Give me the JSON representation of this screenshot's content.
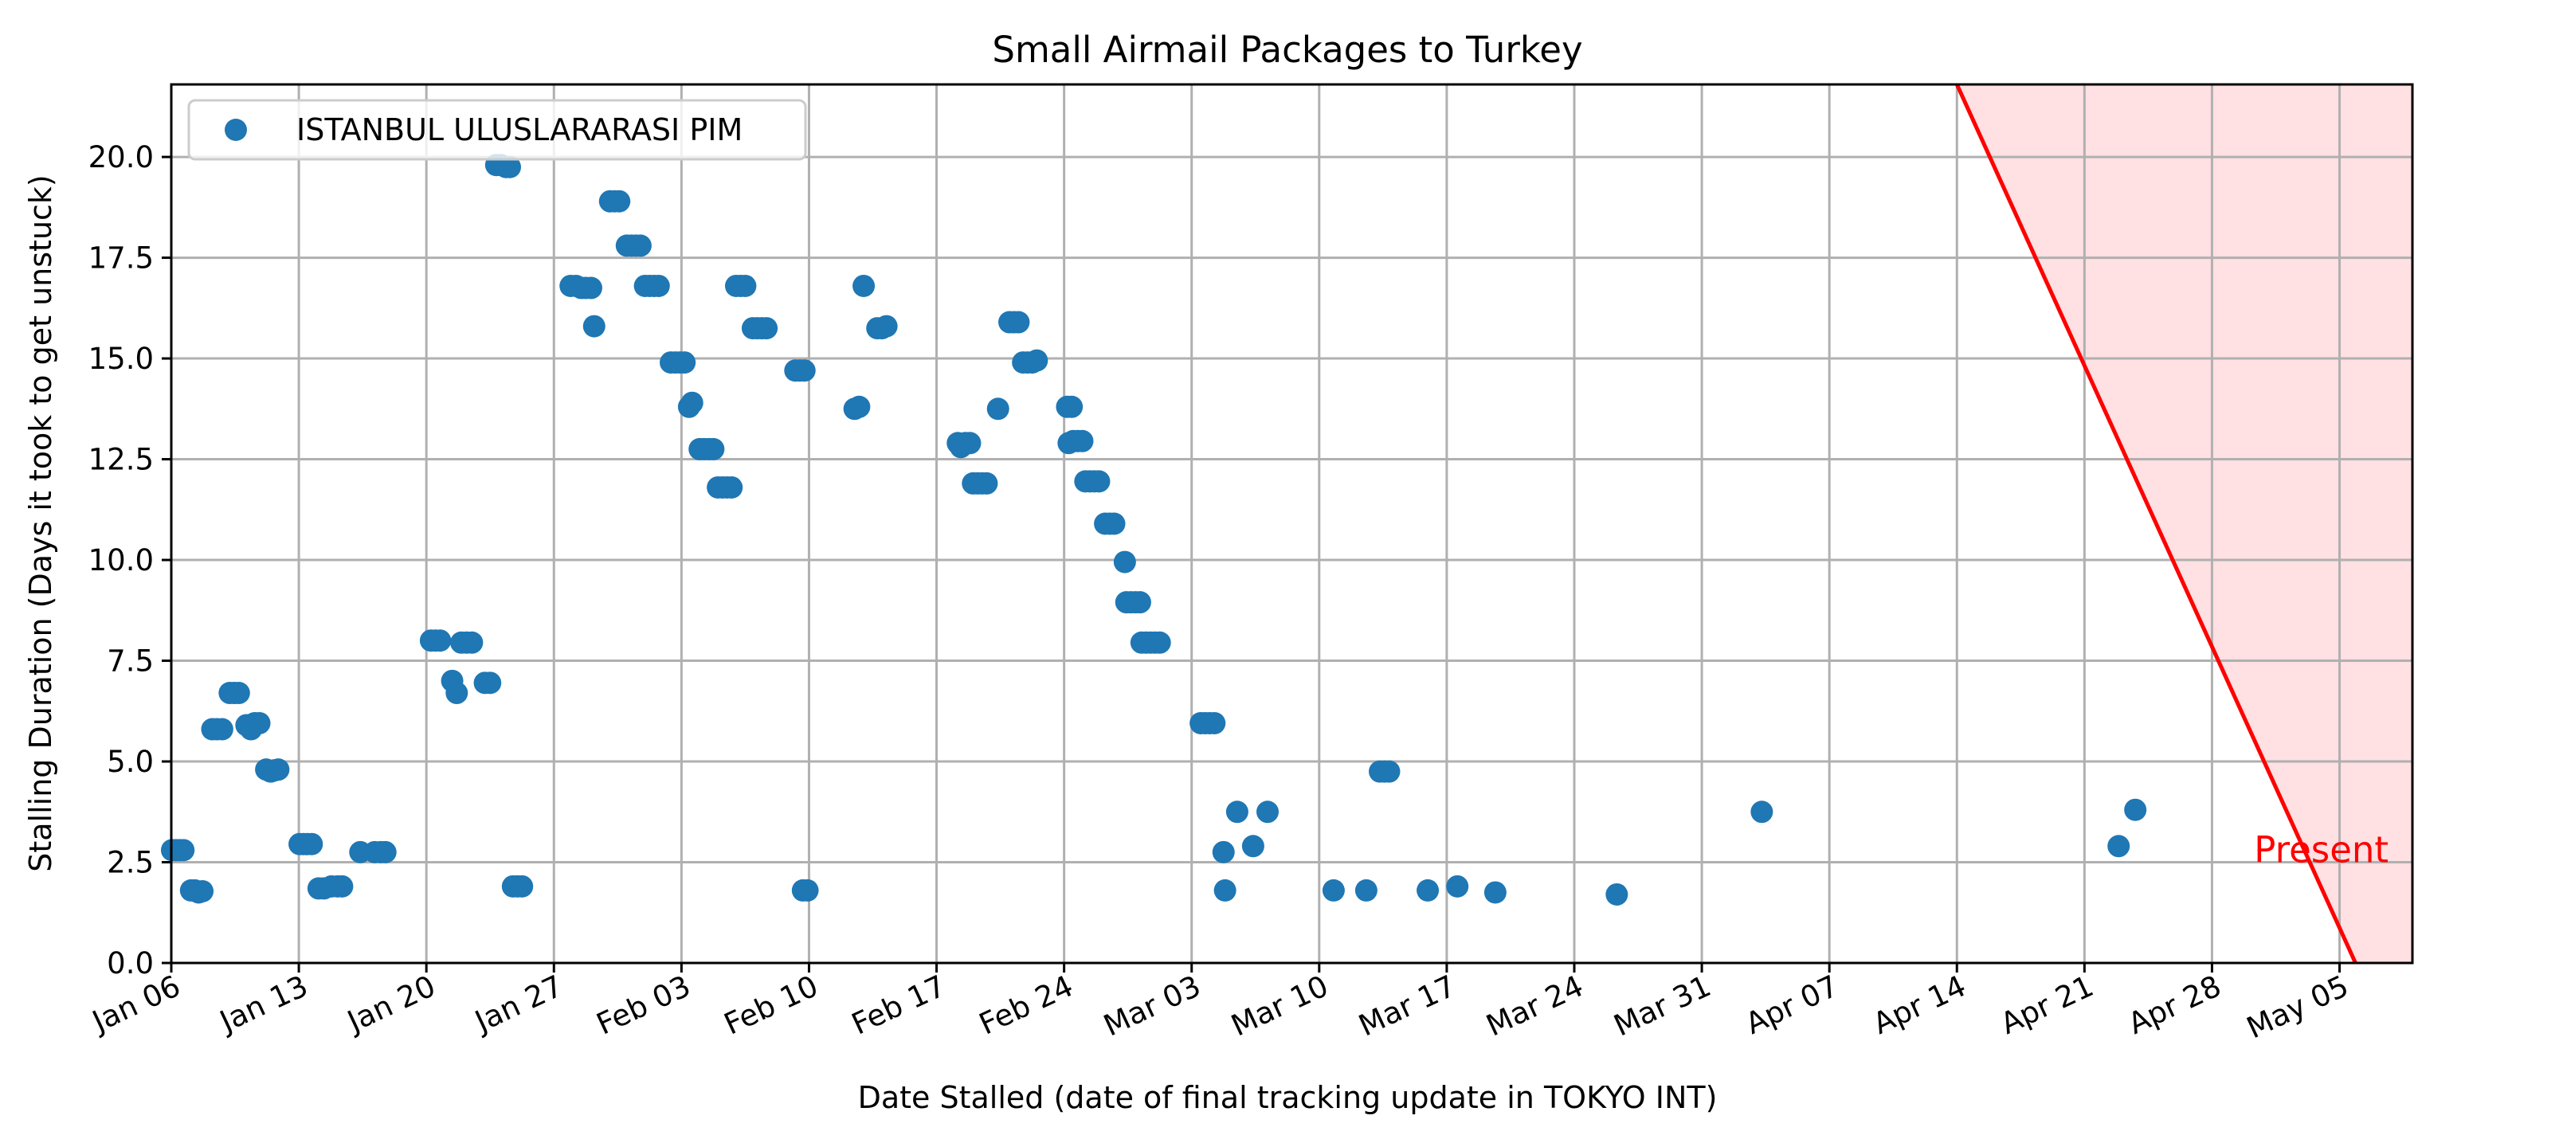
{
  "chart_data": {
    "type": "scatter",
    "title": "Small Airmail Packages to Turkey",
    "xlabel": "Date Stalled (date of final tracking update in TOKYO INT)",
    "ylabel": "Stalling Duration (Days it took to get unstuck)",
    "xlim": [
      "2025-01-06",
      "2025-05-09"
    ],
    "ylim": [
      0,
      21.8
    ],
    "x_ticks": [
      {
        "date": "2025-01-06",
        "label": "Jan 06"
      },
      {
        "date": "2025-01-13",
        "label": "Jan 13"
      },
      {
        "date": "2025-01-20",
        "label": "Jan 20"
      },
      {
        "date": "2025-01-27",
        "label": "Jan 27"
      },
      {
        "date": "2025-02-03",
        "label": "Feb 03"
      },
      {
        "date": "2025-02-10",
        "label": "Feb 10"
      },
      {
        "date": "2025-02-17",
        "label": "Feb 17"
      },
      {
        "date": "2025-02-24",
        "label": "Feb 24"
      },
      {
        "date": "2025-03-03",
        "label": "Mar 03"
      },
      {
        "date": "2025-03-10",
        "label": "Mar 10"
      },
      {
        "date": "2025-03-17",
        "label": "Mar 17"
      },
      {
        "date": "2025-03-24",
        "label": "Mar 24"
      },
      {
        "date": "2025-03-31",
        "label": "Mar 31"
      },
      {
        "date": "2025-04-07",
        "label": "Apr 07"
      },
      {
        "date": "2025-04-14",
        "label": "Apr 14"
      },
      {
        "date": "2025-04-21",
        "label": "Apr 21"
      },
      {
        "date": "2025-04-28",
        "label": "Apr 28"
      },
      {
        "date": "2025-05-05",
        "label": "May 05"
      }
    ],
    "y_ticks": [
      {
        "value": 0,
        "label": "0.0"
      },
      {
        "value": 2.5,
        "label": "2.5"
      },
      {
        "value": 5,
        "label": "5.0"
      },
      {
        "value": 7.5,
        "label": "7.5"
      },
      {
        "value": 10,
        "label": "10.0"
      },
      {
        "value": 12.5,
        "label": "12.5"
      },
      {
        "value": 15,
        "label": "15.0"
      },
      {
        "value": 17.5,
        "label": "17.5"
      },
      {
        "value": 20,
        "label": "20.0"
      }
    ],
    "grid": true,
    "legend_position": "top-left",
    "series": [
      {
        "name": "ISTANBUL ULUSLARARASI PIM",
        "color": "#1f77b4",
        "points": [
          {
            "x": "2025-01-06 01:00",
            "y": 2.8
          },
          {
            "x": "2025-01-06 06:00",
            "y": 2.8
          },
          {
            "x": "2025-01-06 11:00",
            "y": 2.8
          },
          {
            "x": "2025-01-06 16:00",
            "y": 2.8
          },
          {
            "x": "2025-01-07 02:00",
            "y": 1.8
          },
          {
            "x": "2025-01-07 07:00",
            "y": 1.8
          },
          {
            "x": "2025-01-07 12:00",
            "y": 1.75
          },
          {
            "x": "2025-01-07 17:00",
            "y": 1.78
          },
          {
            "x": "2025-01-08 06:00",
            "y": 5.8
          },
          {
            "x": "2025-01-08 12:00",
            "y": 5.8
          },
          {
            "x": "2025-01-08 19:00",
            "y": 5.8
          },
          {
            "x": "2025-01-09 05:00",
            "y": 6.7
          },
          {
            "x": "2025-01-09 11:00",
            "y": 6.7
          },
          {
            "x": "2025-01-09 17:00",
            "y": 6.7
          },
          {
            "x": "2025-01-10 03:00",
            "y": 5.9
          },
          {
            "x": "2025-01-10 09:00",
            "y": 5.8
          },
          {
            "x": "2025-01-10 14:00",
            "y": 5.95
          },
          {
            "x": "2025-01-10 20:00",
            "y": 5.95
          },
          {
            "x": "2025-01-11 05:00",
            "y": 4.8
          },
          {
            "x": "2025-01-11 11:00",
            "y": 4.75
          },
          {
            "x": "2025-01-11 16:00",
            "y": 4.78
          },
          {
            "x": "2025-01-11 21:00",
            "y": 4.8
          },
          {
            "x": "2025-01-13 01:00",
            "y": 2.95
          },
          {
            "x": "2025-01-13 06:00",
            "y": 2.95
          },
          {
            "x": "2025-01-13 11:00",
            "y": 2.95
          },
          {
            "x": "2025-01-13 17:00",
            "y": 2.95
          },
          {
            "x": "2025-01-14 02:00",
            "y": 1.85
          },
          {
            "x": "2025-01-14 09:00",
            "y": 1.85
          },
          {
            "x": "2025-01-14 19:00",
            "y": 1.9
          },
          {
            "x": "2025-01-15 03:00",
            "y": 1.9
          },
          {
            "x": "2025-01-15 09:00",
            "y": 1.9
          },
          {
            "x": "2025-01-16 09:00",
            "y": 2.75
          },
          {
            "x": "2025-01-17 04:00",
            "y": 2.75
          },
          {
            "x": "2025-01-17 12:00",
            "y": 2.75
          },
          {
            "x": "2025-01-17 18:00",
            "y": 2.75
          },
          {
            "x": "2025-01-20 06:00",
            "y": 8.0
          },
          {
            "x": "2025-01-20 12:00",
            "y": 8.0
          },
          {
            "x": "2025-01-20 18:00",
            "y": 8.0
          },
          {
            "x": "2025-01-21 10:00",
            "y": 7.0
          },
          {
            "x": "2025-01-21 16:00",
            "y": 6.7
          },
          {
            "x": "2025-01-21 22:00",
            "y": 7.95
          },
          {
            "x": "2025-01-22 05:00",
            "y": 7.95
          },
          {
            "x": "2025-01-22 12:00",
            "y": 7.95
          },
          {
            "x": "2025-01-23 05:00",
            "y": 6.95
          },
          {
            "x": "2025-01-23 12:00",
            "y": 6.95
          },
          {
            "x": "2025-01-23 20:00",
            "y": 19.8
          },
          {
            "x": "2025-01-24 02:00",
            "y": 19.8
          },
          {
            "x": "2025-01-24 09:00",
            "y": 19.75
          },
          {
            "x": "2025-01-24 14:00",
            "y": 19.75
          },
          {
            "x": "2025-01-24 18:00",
            "y": 1.9
          },
          {
            "x": "2025-01-25 00:00",
            "y": 1.9
          },
          {
            "x": "2025-01-25 06:00",
            "y": 1.9
          },
          {
            "x": "2025-01-27 22:00",
            "y": 16.8
          },
          {
            "x": "2025-01-28 05:00",
            "y": 16.8
          },
          {
            "x": "2025-01-28 12:00",
            "y": 16.75
          },
          {
            "x": "2025-01-28 18:00",
            "y": 16.75
          },
          {
            "x": "2025-01-29 01:00",
            "y": 16.75
          },
          {
            "x": "2025-01-29 05:00",
            "y": 15.8
          },
          {
            "x": "2025-01-30 02:00",
            "y": 18.9
          },
          {
            "x": "2025-01-30 08:00",
            "y": 18.9
          },
          {
            "x": "2025-01-30 14:00",
            "y": 18.9
          },
          {
            "x": "2025-01-31 00:00",
            "y": 17.8
          },
          {
            "x": "2025-01-31 06:00",
            "y": 17.8
          },
          {
            "x": "2025-01-31 12:00",
            "y": 17.8
          },
          {
            "x": "2025-01-31 18:00",
            "y": 17.8
          },
          {
            "x": "2025-02-01 00:00",
            "y": 16.8
          },
          {
            "x": "2025-02-01 06:00",
            "y": 16.8
          },
          {
            "x": "2025-02-01 12:00",
            "y": 16.8
          },
          {
            "x": "2025-02-01 18:00",
            "y": 16.8
          },
          {
            "x": "2025-02-02 10:00",
            "y": 14.9
          },
          {
            "x": "2025-02-02 16:00",
            "y": 14.9
          },
          {
            "x": "2025-02-02 22:00",
            "y": 14.9
          },
          {
            "x": "2025-02-03 04:00",
            "y": 14.9
          },
          {
            "x": "2025-02-03 10:00",
            "y": 13.8
          },
          {
            "x": "2025-02-03 14:00",
            "y": 13.9
          },
          {
            "x": "2025-02-04 00:00",
            "y": 12.75
          },
          {
            "x": "2025-02-04 06:00",
            "y": 12.75
          },
          {
            "x": "2025-02-04 12:00",
            "y": 12.75
          },
          {
            "x": "2025-02-04 18:00",
            "y": 12.75
          },
          {
            "x": "2025-02-05 00:00",
            "y": 11.8
          },
          {
            "x": "2025-02-05 06:00",
            "y": 11.8
          },
          {
            "x": "2025-02-05 12:00",
            "y": 11.8
          },
          {
            "x": "2025-02-05 18:00",
            "y": 11.8
          },
          {
            "x": "2025-02-06 00:00",
            "y": 16.8
          },
          {
            "x": "2025-02-06 06:00",
            "y": 16.8
          },
          {
            "x": "2025-02-06 12:00",
            "y": 16.8
          },
          {
            "x": "2025-02-06 22:00",
            "y": 15.75
          },
          {
            "x": "2025-02-07 04:00",
            "y": 15.75
          },
          {
            "x": "2025-02-07 10:00",
            "y": 15.75
          },
          {
            "x": "2025-02-07 16:00",
            "y": 15.75
          },
          {
            "x": "2025-02-09 06:00",
            "y": 14.7
          },
          {
            "x": "2025-02-09 12:00",
            "y": 14.7
          },
          {
            "x": "2025-02-09 18:00",
            "y": 14.7
          },
          {
            "x": "2025-02-09 16:00",
            "y": 1.8
          },
          {
            "x": "2025-02-09 22:00",
            "y": 1.8
          },
          {
            "x": "2025-02-12 12:00",
            "y": 13.75
          },
          {
            "x": "2025-02-12 18:00",
            "y": 13.8
          },
          {
            "x": "2025-02-13 00:00",
            "y": 16.8
          },
          {
            "x": "2025-02-13 18:00",
            "y": 15.75
          },
          {
            "x": "2025-02-14 00:00",
            "y": 15.75
          },
          {
            "x": "2025-02-14 06:00",
            "y": 15.8
          },
          {
            "x": "2025-02-18 04:00",
            "y": 12.9
          },
          {
            "x": "2025-02-18 08:00",
            "y": 12.8
          },
          {
            "x": "2025-02-18 14:00",
            "y": 12.9
          },
          {
            "x": "2025-02-18 20:00",
            "y": 12.9
          },
          {
            "x": "2025-02-19 00:00",
            "y": 11.9
          },
          {
            "x": "2025-02-19 06:00",
            "y": 11.9
          },
          {
            "x": "2025-02-19 12:00",
            "y": 11.9
          },
          {
            "x": "2025-02-19 18:00",
            "y": 11.9
          },
          {
            "x": "2025-02-20 09:00",
            "y": 13.75
          },
          {
            "x": "2025-02-21 00:00",
            "y": 15.9
          },
          {
            "x": "2025-02-21 06:00",
            "y": 15.9
          },
          {
            "x": "2025-02-21 12:00",
            "y": 15.9
          },
          {
            "x": "2025-02-21 18:00",
            "y": 14.9
          },
          {
            "x": "2025-02-22 00:00",
            "y": 14.9
          },
          {
            "x": "2025-02-22 06:00",
            "y": 14.9
          },
          {
            "x": "2025-02-22 12:00",
            "y": 14.95
          },
          {
            "x": "2025-02-24 04:00",
            "y": 13.8
          },
          {
            "x": "2025-02-24 10:00",
            "y": 13.8
          },
          {
            "x": "2025-02-24 06:00",
            "y": 12.9
          },
          {
            "x": "2025-02-24 12:00",
            "y": 12.95
          },
          {
            "x": "2025-02-24 18:00",
            "y": 12.95
          },
          {
            "x": "2025-02-25 00:00",
            "y": 12.95
          },
          {
            "x": "2025-02-25 04:00",
            "y": 11.95
          },
          {
            "x": "2025-02-25 10:00",
            "y": 11.95
          },
          {
            "x": "2025-02-25 16:00",
            "y": 11.95
          },
          {
            "x": "2025-02-25 22:00",
            "y": 11.95
          },
          {
            "x": "2025-02-26 06:00",
            "y": 10.9
          },
          {
            "x": "2025-02-26 12:00",
            "y": 10.9
          },
          {
            "x": "2025-02-26 18:00",
            "y": 10.9
          },
          {
            "x": "2025-02-27 08:00",
            "y": 9.95
          },
          {
            "x": "2025-02-27 10:00",
            "y": 8.95
          },
          {
            "x": "2025-02-27 16:00",
            "y": 8.95
          },
          {
            "x": "2025-02-27 22:00",
            "y": 8.95
          },
          {
            "x": "2025-02-28 04:00",
            "y": 8.95
          },
          {
            "x": "2025-02-28 06:00",
            "y": 7.95
          },
          {
            "x": "2025-02-28 12:00",
            "y": 7.95
          },
          {
            "x": "2025-02-28 18:00",
            "y": 7.95
          },
          {
            "x": "2025-03-01 00:00",
            "y": 7.95
          },
          {
            "x": "2025-03-01 06:00",
            "y": 7.95
          },
          {
            "x": "2025-03-03 12:00",
            "y": 5.95
          },
          {
            "x": "2025-03-03 18:00",
            "y": 5.95
          },
          {
            "x": "2025-03-04 00:00",
            "y": 5.95
          },
          {
            "x": "2025-03-04 06:00",
            "y": 5.95
          },
          {
            "x": "2025-03-04 18:00",
            "y": 2.75
          },
          {
            "x": "2025-03-04 20:00",
            "y": 1.8
          },
          {
            "x": "2025-03-05 12:00",
            "y": 3.75
          },
          {
            "x": "2025-03-06 09:00",
            "y": 2.9
          },
          {
            "x": "2025-03-07 04:00",
            "y": 3.75
          },
          {
            "x": "2025-03-10 19:00",
            "y": 1.8
          },
          {
            "x": "2025-03-12 14:00",
            "y": 1.8
          },
          {
            "x": "2025-03-13 08:00",
            "y": 4.75
          },
          {
            "x": "2025-03-13 14:00",
            "y": 4.75
          },
          {
            "x": "2025-03-13 20:00",
            "y": 4.75
          },
          {
            "x": "2025-03-15 23:00",
            "y": 1.8
          },
          {
            "x": "2025-03-17 14:00",
            "y": 1.9
          },
          {
            "x": "2025-03-19 16:00",
            "y": 1.75
          },
          {
            "x": "2025-03-26 08:00",
            "y": 1.7
          },
          {
            "x": "2025-04-03 07:00",
            "y": 3.75
          },
          {
            "x": "2025-04-22 21:00",
            "y": 2.9
          },
          {
            "x": "2025-04-23 19:00",
            "y": 3.8
          }
        ]
      }
    ],
    "present_region": {
      "label": "Present",
      "color": "#ff0000",
      "fill_color": "#ffe0e3",
      "line": [
        {
          "x": "2025-04-14",
          "y": 21.8
        },
        {
          "x": "2025-05-05 21:00",
          "y": 0
        }
      ],
      "label_position": {
        "x": "2025-05-04",
        "y": 2.5
      }
    }
  }
}
